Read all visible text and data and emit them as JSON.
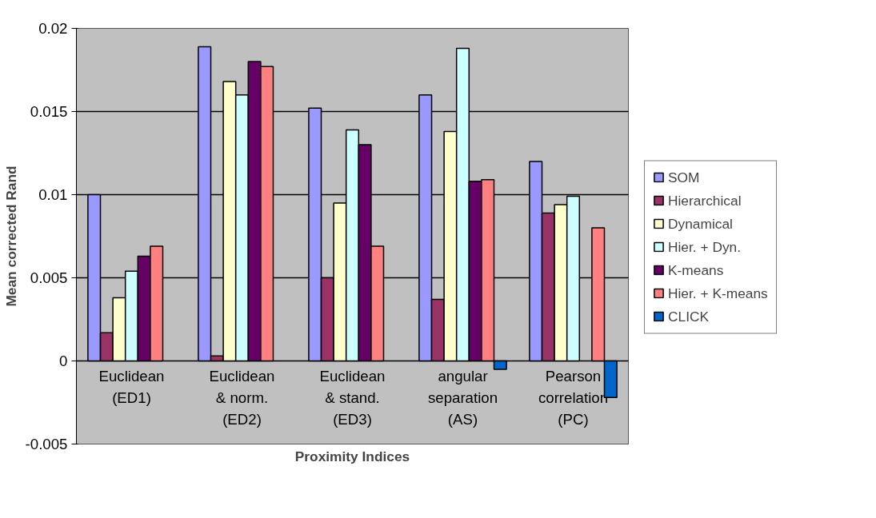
{
  "chart_data": {
    "type": "bar",
    "xlabel": "Proximity Indices",
    "ylabel": "Mean corrected Rand",
    "categories": [
      "Euclidean\n(ED1)",
      "Euclidean\n& norm.\n(ED2)",
      "Euclidean\n& stand.\n(ED3)",
      "angular\nseparation\n(AS)",
      "Pearson\ncorrelation\n(PC)"
    ],
    "series": [
      {
        "name": "SOM",
        "color": "#9999ff",
        "values": [
          0.01,
          0.0189,
          0.0152,
          0.016,
          0.012
        ]
      },
      {
        "name": "Hierarchical",
        "color": "#993366",
        "values": [
          0.0017,
          0.0003,
          0.005,
          0.0037,
          0.0089
        ]
      },
      {
        "name": "Dynamical",
        "color": "#ffffcc",
        "values": [
          0.0038,
          0.0168,
          0.0095,
          0.0138,
          0.0094
        ]
      },
      {
        "name": "Hier. + Dyn.",
        "color": "#ccffff",
        "values": [
          0.0054,
          0.016,
          0.0139,
          0.0188,
          0.0099
        ]
      },
      {
        "name": "K-means",
        "color": "#660066",
        "values": [
          0.0063,
          0.018,
          0.013,
          0.0108,
          null
        ]
      },
      {
        "name": "Hier. + K-means",
        "color": "#ff8080",
        "values": [
          0.0069,
          0.0177,
          0.0069,
          0.0109,
          0.008
        ]
      },
      {
        "name": "CLICK",
        "color": "#0066cc",
        "values": [
          null,
          null,
          null,
          -0.0005,
          -0.0022
        ]
      }
    ],
    "ylim": [
      -0.005,
      0.02
    ],
    "yticks": [
      -0.005,
      0,
      0.005,
      0.01,
      0.015,
      0.02
    ],
    "grid": "y",
    "legend": "right"
  }
}
